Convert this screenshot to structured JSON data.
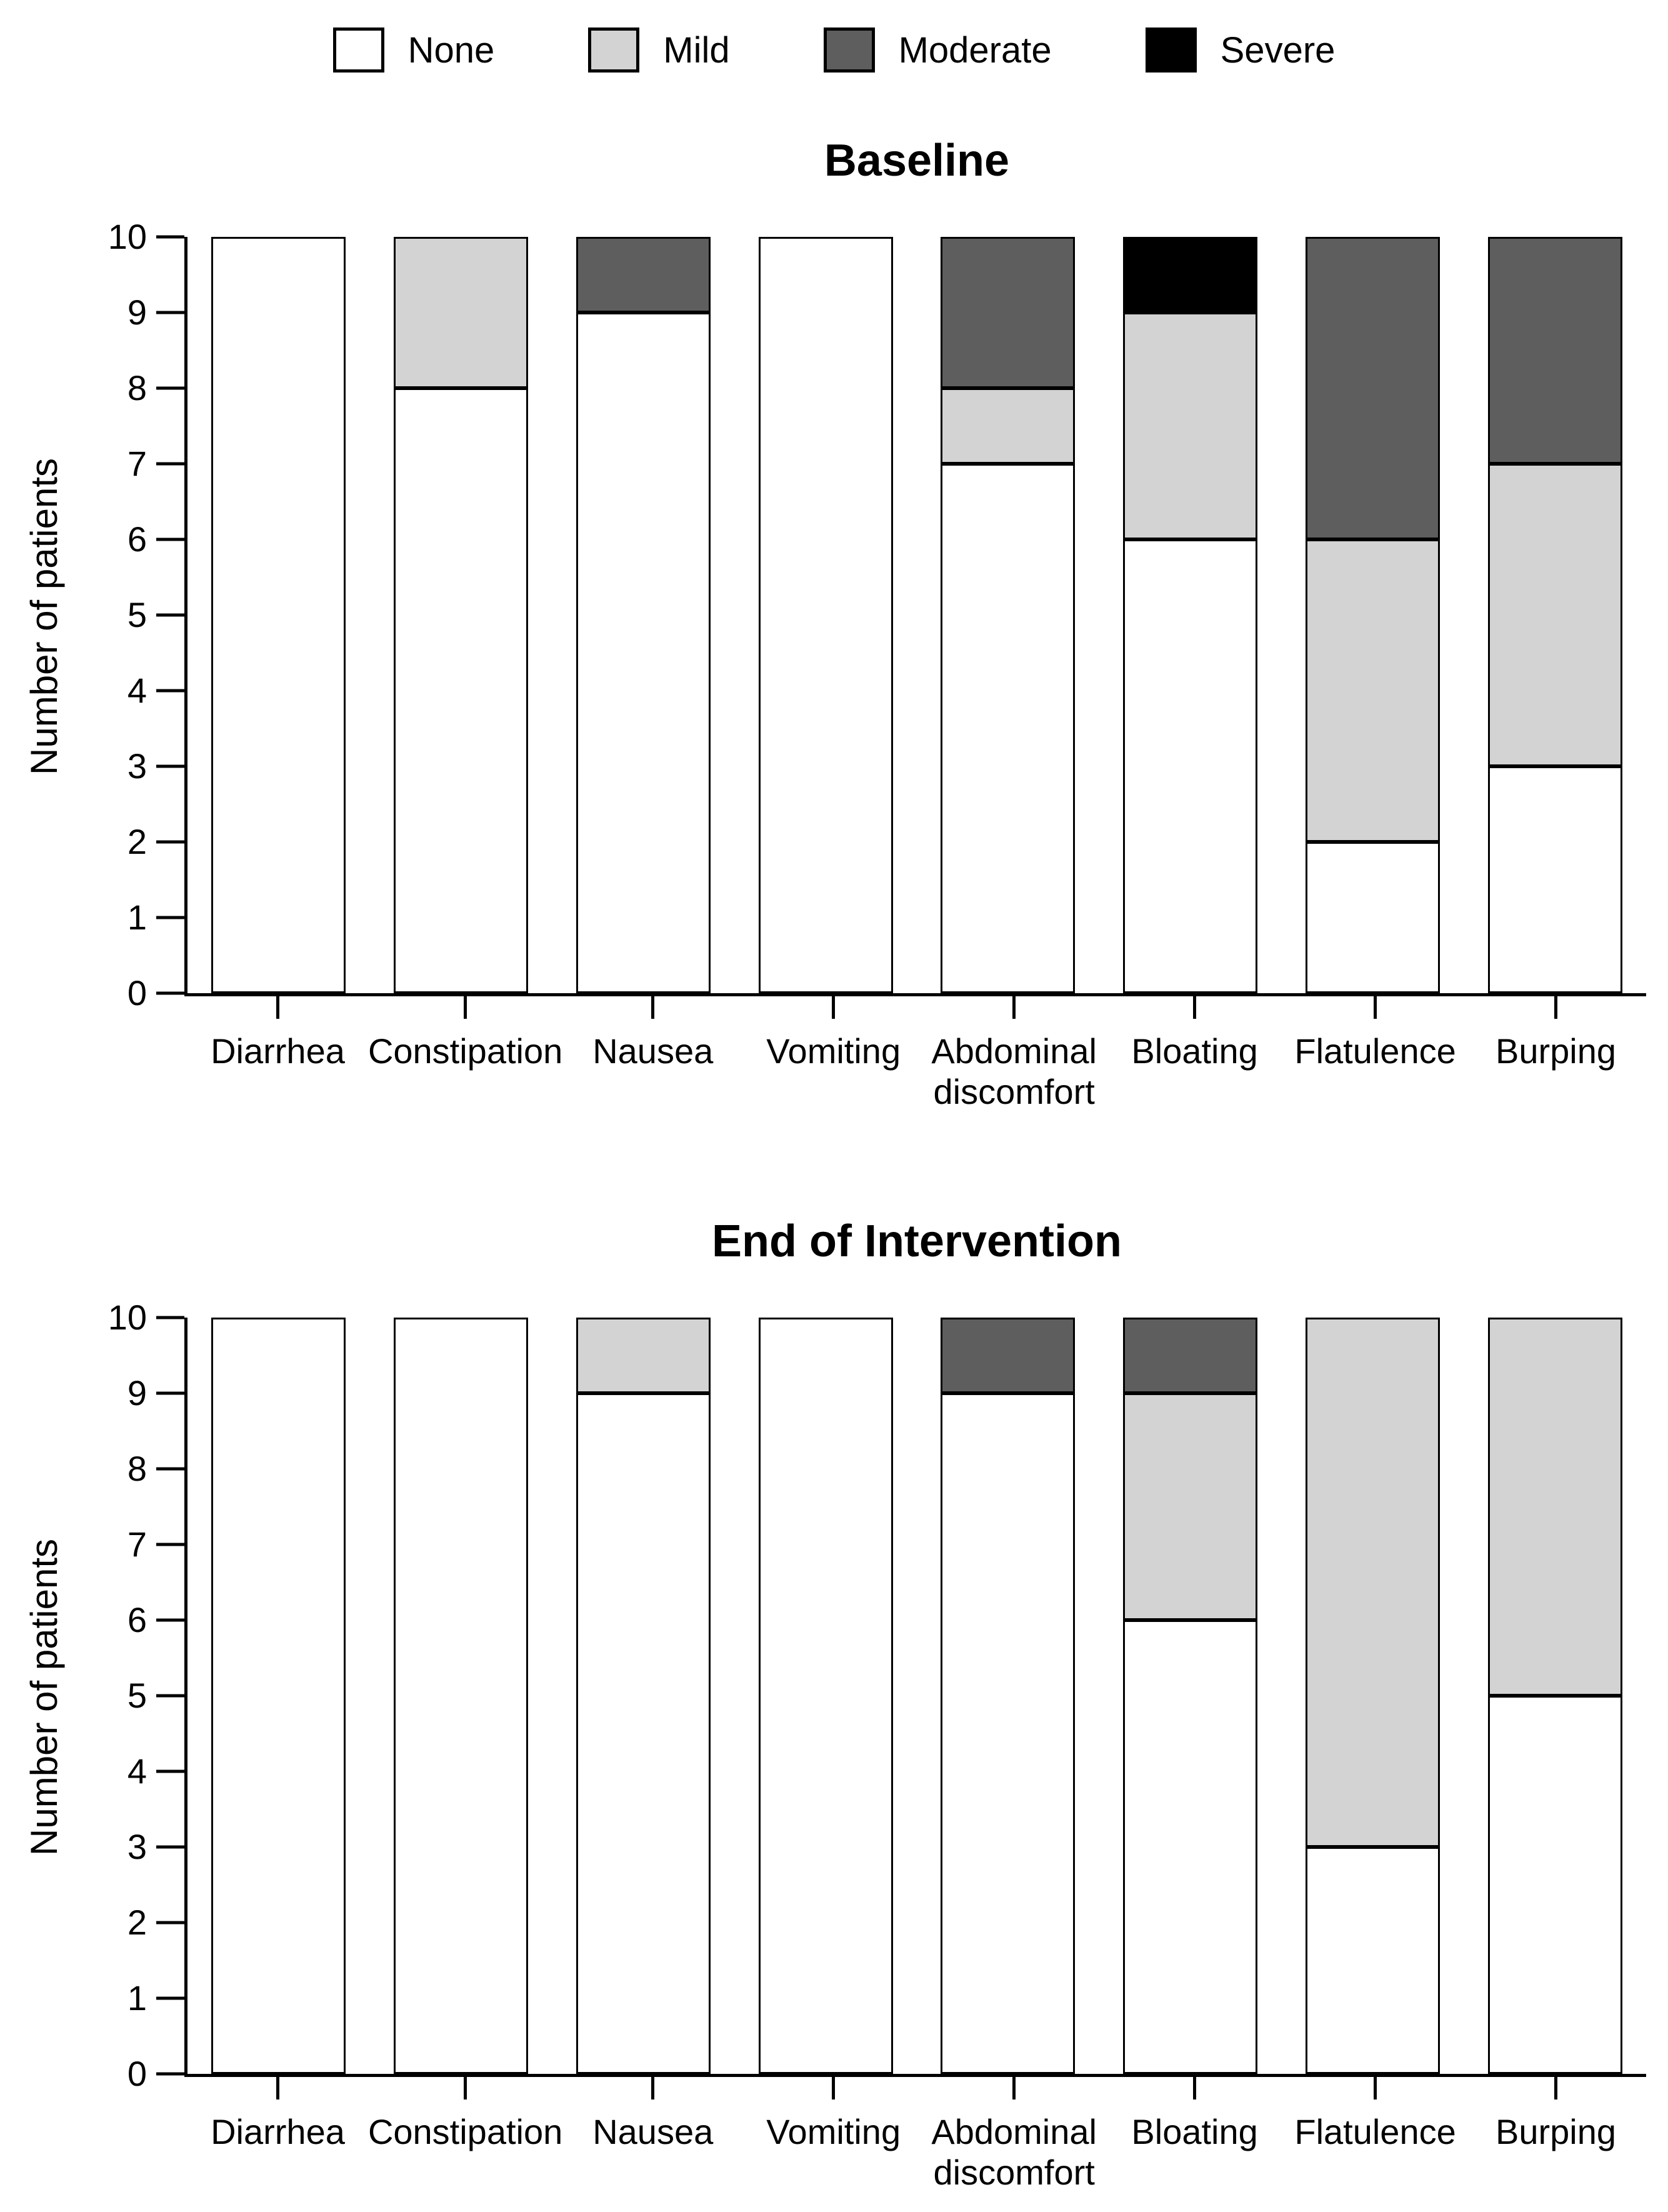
{
  "legend": {
    "items": [
      {
        "label": "None",
        "color": "#ffffff"
      },
      {
        "label": "Mild",
        "color": "#d3d3d3"
      },
      {
        "label": "Moderate",
        "color": "#5e5e5e"
      },
      {
        "label": "Severe",
        "color": "#000000"
      }
    ]
  },
  "chart_data": [
    {
      "type": "bar",
      "stacked": true,
      "title": "Baseline",
      "ylabel": "Number of patients",
      "xlabel": "",
      "ylim": [
        0,
        10
      ],
      "yticks": [
        0,
        1,
        2,
        3,
        4,
        5,
        6,
        7,
        8,
        9,
        10
      ],
      "grid": false,
      "legend_position": "top",
      "categories": [
        "Diarrhea",
        "Constipation",
        "Nausea",
        "Vomiting",
        "Abdominal\ndiscomfort",
        "Bloating",
        "Flatulence",
        "Burping"
      ],
      "series": [
        {
          "name": "None",
          "color": "#ffffff",
          "values": [
            10,
            8,
            9,
            10,
            7,
            6,
            2,
            3
          ]
        },
        {
          "name": "Mild",
          "color": "#d3d3d3",
          "values": [
            0,
            2,
            0,
            0,
            1,
            3,
            4,
            4
          ]
        },
        {
          "name": "Moderate",
          "color": "#5e5e5e",
          "values": [
            0,
            0,
            1,
            0,
            2,
            0,
            4,
            3
          ]
        },
        {
          "name": "Severe",
          "color": "#000000",
          "values": [
            0,
            0,
            0,
            0,
            0,
            1,
            0,
            0
          ]
        }
      ]
    },
    {
      "type": "bar",
      "stacked": true,
      "title": "End of Intervention",
      "ylabel": "Number of patients",
      "xlabel": "",
      "ylim": [
        0,
        10
      ],
      "yticks": [
        0,
        1,
        2,
        3,
        4,
        5,
        6,
        7,
        8,
        9,
        10
      ],
      "grid": false,
      "legend_position": "none",
      "categories": [
        "Diarrhea",
        "Constipation",
        "Nausea",
        "Vomiting",
        "Abdominal\ndiscomfort",
        "Bloating",
        "Flatulence",
        "Burping"
      ],
      "series": [
        {
          "name": "None",
          "color": "#ffffff",
          "values": [
            10,
            10,
            9,
            10,
            9,
            6,
            3,
            5
          ]
        },
        {
          "name": "Mild",
          "color": "#d3d3d3",
          "values": [
            0,
            0,
            1,
            0,
            0,
            3,
            7,
            5
          ]
        },
        {
          "name": "Moderate",
          "color": "#5e5e5e",
          "values": [
            0,
            0,
            0,
            0,
            1,
            1,
            0,
            0
          ]
        },
        {
          "name": "Severe",
          "color": "#000000",
          "values": [
            0,
            0,
            0,
            0,
            0,
            0,
            0,
            0
          ]
        }
      ]
    }
  ]
}
